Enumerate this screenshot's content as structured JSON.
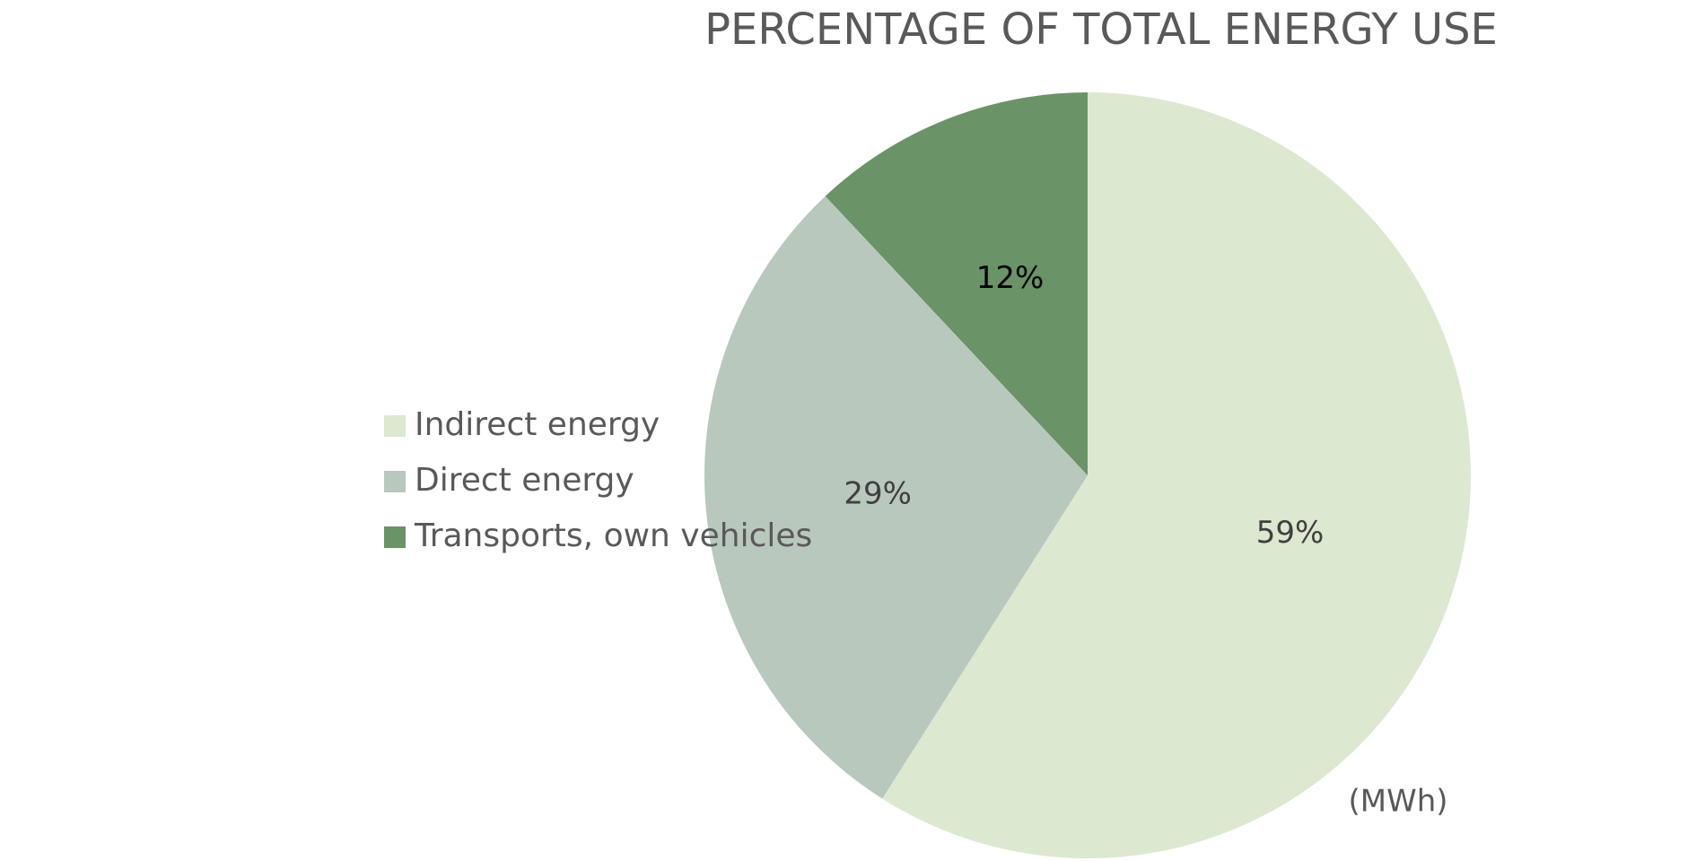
{
  "chart_data": {
    "type": "pie",
    "title": "PERCENTAGE OF TOTAL ENERGY USE",
    "annotation": "(MWh)",
    "categories": [
      "Indirect energy",
      "Direct energy",
      "Transports, own vehicles"
    ],
    "values": [
      59,
      29,
      12
    ],
    "value_labels": [
      "59%",
      "29%",
      "12%"
    ],
    "colors": [
      "#dce8d0",
      "#b9c8bd",
      "#6a9367"
    ],
    "legend": "left"
  }
}
